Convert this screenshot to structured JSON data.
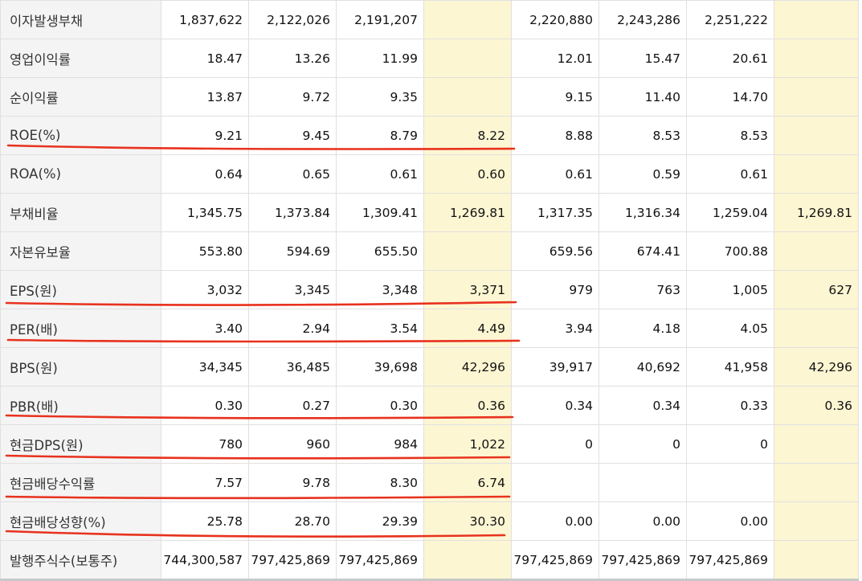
{
  "table": {
    "rows": [
      {
        "label": "이자발생부채",
        "values": [
          "1,837,622",
          "2,122,026",
          "2,191,207",
          "",
          "2,220,880",
          "2,243,286",
          "2,251,222",
          ""
        ]
      },
      {
        "label": "영업이익률",
        "values": [
          "18.47",
          "13.26",
          "11.99",
          "",
          "12.01",
          "15.47",
          "20.61",
          ""
        ]
      },
      {
        "label": "순이익률",
        "values": [
          "13.87",
          "9.72",
          "9.35",
          "",
          "9.15",
          "11.40",
          "14.70",
          ""
        ]
      },
      {
        "label": "ROE(%)",
        "values": [
          "9.21",
          "9.45",
          "8.79",
          "8.22",
          "8.88",
          "8.53",
          "8.53",
          ""
        ]
      },
      {
        "label": "ROA(%)",
        "values": [
          "0.64",
          "0.65",
          "0.61",
          "0.60",
          "0.61",
          "0.59",
          "0.61",
          ""
        ]
      },
      {
        "label": "부채비율",
        "values": [
          "1,345.75",
          "1,373.84",
          "1,309.41",
          "1,269.81",
          "1,317.35",
          "1,316.34",
          "1,259.04",
          "1,269.81"
        ]
      },
      {
        "label": "자본유보율",
        "values": [
          "553.80",
          "594.69",
          "655.50",
          "",
          "659.56",
          "674.41",
          "700.88",
          ""
        ]
      },
      {
        "label": "EPS(원)",
        "values": [
          "3,032",
          "3,345",
          "3,348",
          "3,371",
          "979",
          "763",
          "1,005",
          "627"
        ]
      },
      {
        "label": "PER(배)",
        "values": [
          "3.40",
          "2.94",
          "3.54",
          "4.49",
          "3.94",
          "4.18",
          "4.05",
          ""
        ]
      },
      {
        "label": "BPS(원)",
        "values": [
          "34,345",
          "36,485",
          "39,698",
          "42,296",
          "39,917",
          "40,692",
          "41,958",
          "42,296"
        ]
      },
      {
        "label": "PBR(배)",
        "values": [
          "0.30",
          "0.27",
          "0.30",
          "0.36",
          "0.34",
          "0.34",
          "0.33",
          "0.36"
        ]
      },
      {
        "label": "현금DPS(원)",
        "values": [
          "780",
          "960",
          "984",
          "1,022",
          "0",
          "0",
          "0",
          ""
        ]
      },
      {
        "label": "현금배당수익률",
        "values": [
          "7.57",
          "9.78",
          "8.30",
          "6.74",
          "",
          "",
          "",
          ""
        ]
      },
      {
        "label": "현금배당성향(%)",
        "values": [
          "25.78",
          "28.70",
          "29.39",
          "30.30",
          "0.00",
          "0.00",
          "0.00",
          ""
        ]
      },
      {
        "label": "발행주식수(보통주)",
        "values": [
          "744,300,587",
          "797,425,869",
          "797,425,869",
          "",
          "797,425,869",
          "797,425,869",
          "797,425,869",
          ""
        ]
      }
    ],
    "highlight_color": "#fdf6d3"
  },
  "annotations": {
    "underline_color": "#e8321e",
    "underlined_rows": [
      "ROE(%)",
      "EPS(원)",
      "PER(배)",
      "PBR(배)",
      "현금DPS(원)",
      "현금배당수익률",
      "현금배당성향(%)"
    ]
  }
}
